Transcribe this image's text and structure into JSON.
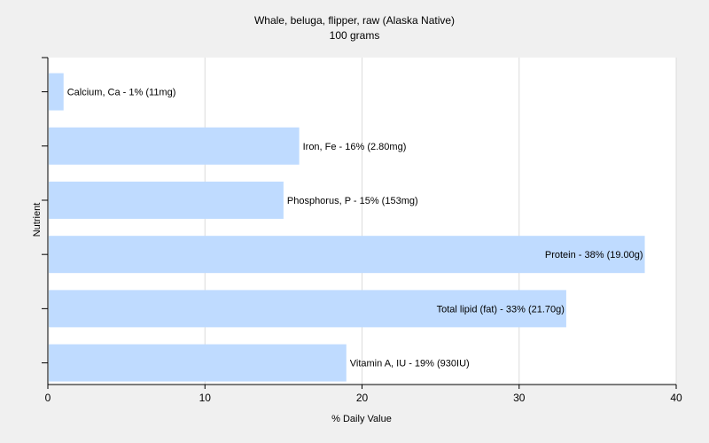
{
  "chart_data": {
    "type": "bar",
    "orientation": "horizontal",
    "title": "Whale, beluga, flipper, raw (Alaska Native)",
    "subtitle": "100 grams",
    "xlabel": "% Daily Value",
    "ylabel": "Nutrient",
    "xlim": [
      0,
      40
    ],
    "xticks": [
      0,
      10,
      20,
      30,
      40
    ],
    "grid": true,
    "bar_color": "#bfdbff",
    "categories": [
      "Calcium, Ca",
      "Iron, Fe",
      "Phosphorus, P",
      "Protein",
      "Total lipid (fat)",
      "Vitamin A, IU"
    ],
    "values": [
      1,
      16,
      15,
      38,
      33,
      19
    ],
    "labels": [
      "Calcium, Ca - 1% (11mg)",
      "Iron, Fe - 16% (2.80mg)",
      "Phosphorus, P - 15% (153mg)",
      "Protein - 38% (19.00g)",
      "Total lipid (fat) - 33% (21.70g)",
      "Vitamin A, IU - 19% (930IU)"
    ]
  }
}
